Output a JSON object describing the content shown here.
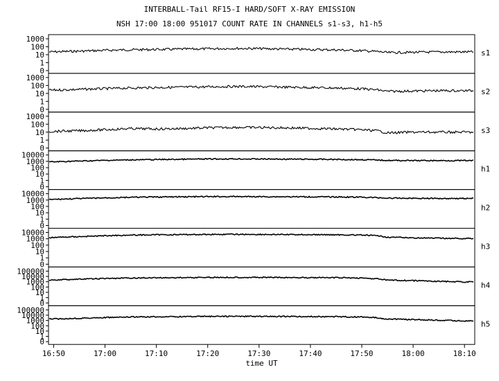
{
  "title_line1": "INTERBALL-Tail RF15-I HARD/SOFT X-RAY EMISSION",
  "title_line2": "NSH 17:00 18:00 951017  COUNT RATE IN CHANNELS s1-s3, h1-h5",
  "chart_data": {
    "type": "line",
    "xlabel": "time UT",
    "x_ticks": [
      "16:50",
      "17:00",
      "17:10",
      "17:20",
      "17:30",
      "17:40",
      "17:50",
      "18:00",
      "18:10"
    ],
    "x_range": [
      "16:49",
      "18:12"
    ],
    "y_scale": "log",
    "grid": false,
    "panels": [
      {
        "name": "s1",
        "y_ticks": [
          "1000",
          "100",
          "10",
          "1",
          "0"
        ],
        "x": [
          "16:49",
          "16:55",
          "17:00",
          "17:05",
          "17:10",
          "17:15",
          "17:20",
          "17:25",
          "17:30",
          "17:35",
          "17:40",
          "17:45",
          "17:50",
          "17:53",
          "17:55",
          "18:00",
          "18:05",
          "18:10",
          "18:12"
        ],
        "values": [
          22,
          28,
          35,
          42,
          45,
          50,
          55,
          62,
          58,
          50,
          45,
          40,
          32,
          25,
          18,
          20,
          22,
          22,
          22
        ]
      },
      {
        "name": "s2",
        "y_ticks": [
          "1000",
          "100",
          "10",
          "1",
          "0"
        ],
        "x": [
          "16:49",
          "16:55",
          "17:00",
          "17:05",
          "17:10",
          "17:15",
          "17:20",
          "17:25",
          "17:30",
          "17:35",
          "17:40",
          "17:45",
          "17:50",
          "17:53",
          "17:55",
          "18:00",
          "18:05",
          "18:10",
          "18:12"
        ],
        "values": [
          25,
          32,
          40,
          48,
          55,
          60,
          68,
          75,
          70,
          62,
          55,
          48,
          38,
          28,
          18,
          20,
          22,
          22,
          22
        ]
      },
      {
        "name": "s3",
        "y_ticks": [
          "1000",
          "100",
          "10",
          "1",
          "0"
        ],
        "x": [
          "16:49",
          "16:55",
          "17:00",
          "17:05",
          "17:10",
          "17:15",
          "17:20",
          "17:25",
          "17:30",
          "17:35",
          "17:40",
          "17:45",
          "17:50",
          "17:53",
          "17:55",
          "18:00",
          "18:05",
          "18:10",
          "18:12"
        ],
        "values": [
          12,
          15,
          20,
          28,
          25,
          28,
          35,
          40,
          38,
          35,
          30,
          25,
          20,
          15,
          8,
          10,
          10,
          10,
          10
        ]
      },
      {
        "name": "h1",
        "y_ticks": [
          "10000",
          "1000",
          "100",
          "10",
          "1",
          "0"
        ],
        "x": [
          "16:49",
          "16:55",
          "17:00",
          "17:05",
          "17:10",
          "17:15",
          "17:20",
          "17:25",
          "17:30",
          "17:35",
          "17:40",
          "17:45",
          "17:50",
          "17:53",
          "17:55",
          "18:00",
          "18:05",
          "18:10",
          "18:12"
        ],
        "values": [
          800,
          1100,
          1400,
          1700,
          1900,
          2100,
          2300,
          2400,
          2300,
          2200,
          2100,
          2000,
          1800,
          1600,
          1400,
          1300,
          1300,
          1300,
          1300
        ]
      },
      {
        "name": "h2",
        "y_ticks": [
          "10000",
          "1000",
          "100",
          "10",
          "1",
          "0"
        ],
        "x": [
          "16:49",
          "16:55",
          "17:00",
          "17:05",
          "17:10",
          "17:15",
          "17:20",
          "17:25",
          "17:30",
          "17:35",
          "17:40",
          "17:45",
          "17:50",
          "17:53",
          "17:55",
          "18:00",
          "18:05",
          "18:10",
          "18:12"
        ],
        "values": [
          1200,
          1700,
          2200,
          2700,
          3000,
          3200,
          3400,
          3500,
          3400,
          3300,
          3200,
          3100,
          2800,
          2400,
          2000,
          1900,
          1800,
          1800,
          1800
        ]
      },
      {
        "name": "h3",
        "y_ticks": [
          "10000",
          "1000",
          "100",
          "10",
          "1",
          "0"
        ],
        "x": [
          "16:49",
          "16:55",
          "17:00",
          "17:05",
          "17:10",
          "17:15",
          "17:20",
          "17:25",
          "17:30",
          "17:35",
          "17:40",
          "17:45",
          "17:50",
          "17:53",
          "17:55",
          "18:00",
          "18:05",
          "18:10",
          "18:12"
        ],
        "values": [
          1500,
          2200,
          3000,
          3800,
          4200,
          4500,
          4800,
          5000,
          4800,
          4600,
          4400,
          4200,
          3800,
          3000,
          1800,
          1400,
          1200,
          1100,
          1200
        ]
      },
      {
        "name": "h4",
        "y_ticks": [
          "100000",
          "10000",
          "1000",
          "100",
          "10",
          "1",
          "0"
        ],
        "x": [
          "16:49",
          "16:55",
          "17:00",
          "17:05",
          "17:10",
          "17:15",
          "17:20",
          "17:25",
          "17:30",
          "17:35",
          "17:40",
          "17:45",
          "17:50",
          "17:53",
          "17:55",
          "18:00",
          "18:05",
          "18:10",
          "18:12"
        ],
        "values": [
          2000,
          3000,
          4000,
          5000,
          5500,
          6000,
          6500,
          6800,
          6500,
          6200,
          6000,
          5800,
          5000,
          3500,
          2000,
          1600,
          1200,
          900,
          1000
        ]
      },
      {
        "name": "h5",
        "y_ticks": [
          "100000",
          "10000",
          "1000",
          "100",
          "10",
          "1",
          "0"
        ],
        "x": [
          "16:49",
          "16:55",
          "17:00",
          "17:05",
          "17:10",
          "17:15",
          "17:20",
          "17:25",
          "17:30",
          "17:35",
          "17:40",
          "17:45",
          "17:50",
          "17:53",
          "17:55",
          "18:00",
          "18:05",
          "18:10",
          "18:12"
        ],
        "values": [
          1800,
          2600,
          3500,
          4400,
          5000,
          5400,
          5800,
          6000,
          5800,
          5600,
          5400,
          5200,
          4500,
          3200,
          1900,
          1500,
          1100,
          800,
          900
        ]
      }
    ]
  }
}
